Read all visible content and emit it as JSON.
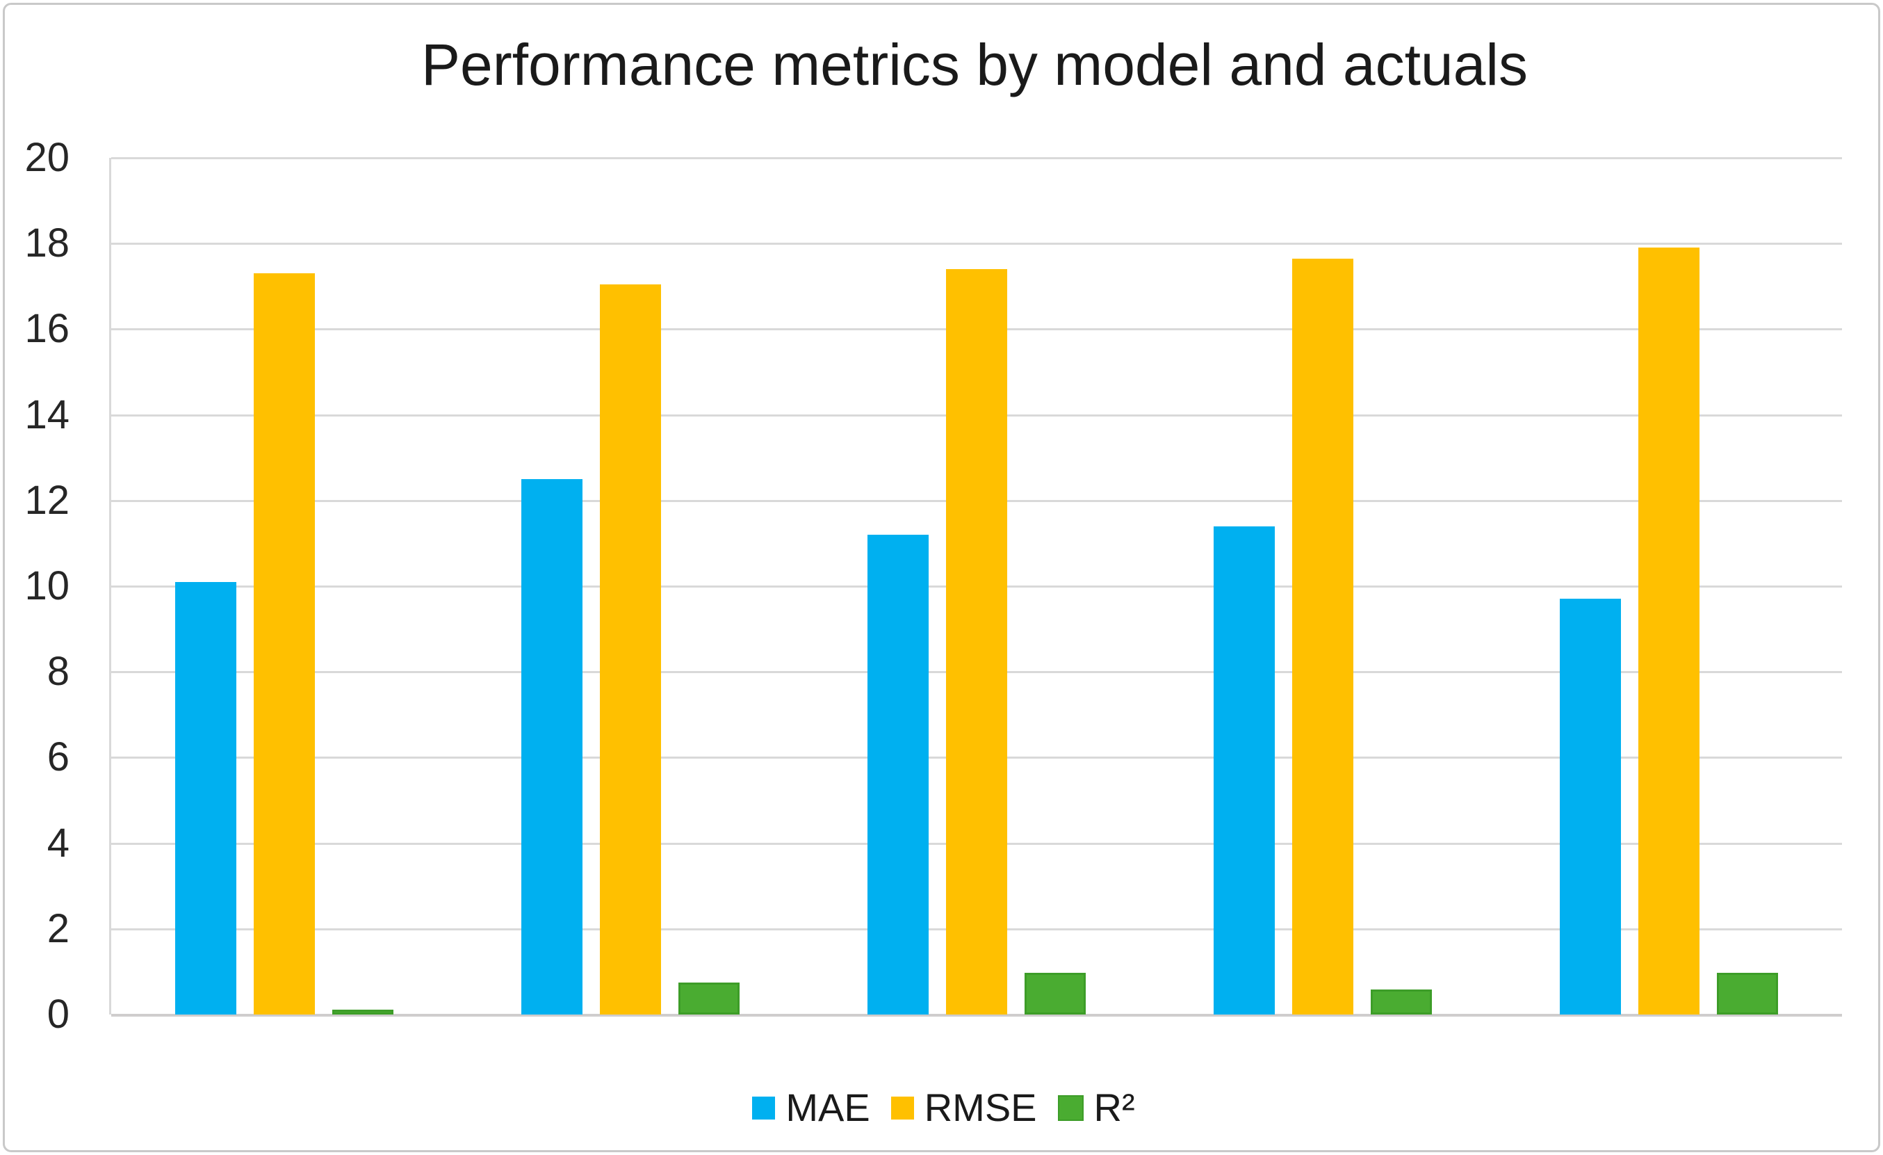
{
  "chart_data": {
    "type": "bar",
    "title": "Performance metrics by model and actuals",
    "categories": [
      "",
      "",
      "",
      "",
      ""
    ],
    "x_axis_labels_visible": false,
    "series": [
      {
        "name": "MAE",
        "color": "#00B0F0",
        "values": [
          10.1,
          12.5,
          11.2,
          11.4,
          9.7
        ]
      },
      {
        "name": "RMSE",
        "color": "#FFC000",
        "values": [
          17.3,
          17.05,
          17.4,
          17.65,
          17.9
        ]
      },
      {
        "name": "R²",
        "color": "#4AAC31",
        "border_color": "#3D9D28",
        "values": [
          0.12,
          0.75,
          0.97,
          0.58,
          0.97
        ]
      }
    ],
    "ylim": [
      0,
      20
    ],
    "ytick_step": 2,
    "grid": "horizontal",
    "gridline_color": "#D9D9D9",
    "baseline_color": "#CFCDCD",
    "legend_position": "bottom-center"
  }
}
